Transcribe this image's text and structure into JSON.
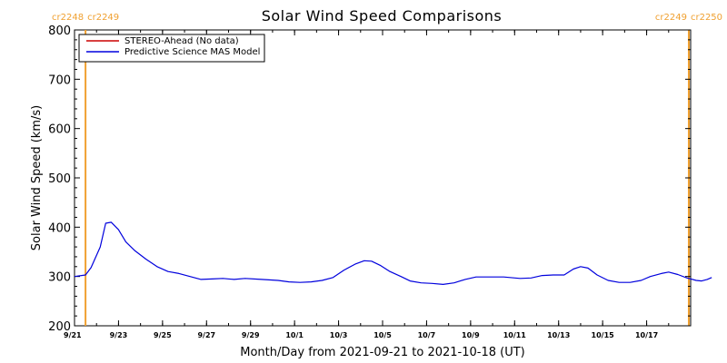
{
  "chart_data": {
    "type": "line",
    "title": "Solar Wind Speed Comparisons",
    "xlabel": "Month/Day from 2021-09-21 to 2021-10-18 (UT)",
    "ylabel": "Solar Wind Speed (km/s)",
    "ylim": [
      200,
      800
    ],
    "yticks": [
      200,
      300,
      400,
      500,
      600,
      700,
      800
    ],
    "xlim": [
      "2021-09-21",
      "2021-10-19"
    ],
    "xticks": [
      {
        "date": "2021-09-21",
        "label": "9/21"
      },
      {
        "date": "2021-09-23",
        "label": "9/23"
      },
      {
        "date": "2021-09-25",
        "label": "9/25"
      },
      {
        "date": "2021-09-27",
        "label": "9/27"
      },
      {
        "date": "2021-09-29",
        "label": "9/29"
      },
      {
        "date": "2021-10-01",
        "label": "10/1"
      },
      {
        "date": "2021-10-03",
        "label": "10/3"
      },
      {
        "date": "2021-10-05",
        "label": "10/5"
      },
      {
        "date": "2021-10-07",
        "label": "10/7"
      },
      {
        "date": "2021-10-09",
        "label": "10/9"
      },
      {
        "date": "2021-10-11",
        "label": "10/11"
      },
      {
        "date": "2021-10-13",
        "label": "10/13"
      },
      {
        "date": "2021-10-15",
        "label": "10/15"
      },
      {
        "date": "2021-10-17",
        "label": "10/17"
      }
    ],
    "grid": false,
    "legend_position": "top-left",
    "carrington_markers": [
      {
        "date": "2021-09-21 12:00",
        "label_left": "cr2248",
        "label_right": "cr2249"
      },
      {
        "date": "2021-10-18 22:00",
        "label_left": "cr2249",
        "label_right": "cr2250"
      }
    ],
    "series": [
      {
        "name": "STEREO-Ahead (No data)",
        "color": "#cc0000",
        "points": []
      },
      {
        "name": "Predictive Science MAS Model",
        "color": "#0000dd",
        "points": [
          [
            "2021-09-21 00:00",
            300
          ],
          [
            "2021-09-21 12:00",
            303
          ],
          [
            "2021-09-21 18:00",
            318
          ],
          [
            "2021-09-22 04:00",
            360
          ],
          [
            "2021-09-22 10:00",
            408
          ],
          [
            "2021-09-22 16:00",
            410
          ],
          [
            "2021-09-23 00:00",
            395
          ],
          [
            "2021-09-23 08:00",
            370
          ],
          [
            "2021-09-23 18:00",
            352
          ],
          [
            "2021-09-24 06:00",
            335
          ],
          [
            "2021-09-24 18:00",
            320
          ],
          [
            "2021-09-25 06:00",
            310
          ],
          [
            "2021-09-25 18:00",
            306
          ],
          [
            "2021-09-26 06:00",
            300
          ],
          [
            "2021-09-26 18:00",
            294
          ],
          [
            "2021-09-27 06:00",
            295
          ],
          [
            "2021-09-27 18:00",
            296
          ],
          [
            "2021-09-28 06:00",
            294
          ],
          [
            "2021-09-28 18:00",
            296
          ],
          [
            "2021-09-29 12:00",
            294
          ],
          [
            "2021-09-30 06:00",
            292
          ],
          [
            "2021-09-30 18:00",
            289
          ],
          [
            "2021-10-01 06:00",
            288
          ],
          [
            "2021-10-01 18:00",
            289
          ],
          [
            "2021-10-02 06:00",
            292
          ],
          [
            "2021-10-02 18:00",
            298
          ],
          [
            "2021-10-03 06:00",
            313
          ],
          [
            "2021-10-03 18:00",
            325
          ],
          [
            "2021-10-04 04:00",
            332
          ],
          [
            "2021-10-04 12:00",
            331
          ],
          [
            "2021-10-04 22:00",
            322
          ],
          [
            "2021-10-05 08:00",
            310
          ],
          [
            "2021-10-05 20:00",
            300
          ],
          [
            "2021-10-06 06:00",
            291
          ],
          [
            "2021-10-06 18:00",
            287
          ],
          [
            "2021-10-07 06:00",
            286
          ],
          [
            "2021-10-07 18:00",
            284
          ],
          [
            "2021-10-08 06:00",
            287
          ],
          [
            "2021-10-08 18:00",
            294
          ],
          [
            "2021-10-09 06:00",
            299
          ],
          [
            "2021-10-09 18:00",
            299
          ],
          [
            "2021-10-10 12:00",
            299
          ],
          [
            "2021-10-11 06:00",
            296
          ],
          [
            "2021-10-11 18:00",
            297
          ],
          [
            "2021-10-12 06:00",
            302
          ],
          [
            "2021-10-12 18:00",
            303
          ],
          [
            "2021-10-13 06:00",
            303
          ],
          [
            "2021-10-13 16:00",
            315
          ],
          [
            "2021-10-14 00:00",
            320
          ],
          [
            "2021-10-14 08:00",
            317
          ],
          [
            "2021-10-14 18:00",
            303
          ],
          [
            "2021-10-15 06:00",
            292
          ],
          [
            "2021-10-15 18:00",
            288
          ],
          [
            "2021-10-16 06:00",
            288
          ],
          [
            "2021-10-16 18:00",
            292
          ],
          [
            "2021-10-17 04:00",
            300
          ],
          [
            "2021-10-17 16:00",
            306
          ],
          [
            "2021-10-18 00:00",
            309
          ],
          [
            "2021-10-18 10:00",
            304
          ],
          [
            "2021-10-18 20:00",
            297
          ],
          [
            "2021-10-19 06:00",
            292
          ],
          [
            "2021-10-19 12:00",
            291
          ],
          [
            "2021-10-19 18:00",
            294
          ],
          [
            "2021-10-19 23:00",
            298
          ]
        ]
      }
    ],
    "colors": {
      "axis": "#000000",
      "marker": "#f0a030"
    }
  }
}
